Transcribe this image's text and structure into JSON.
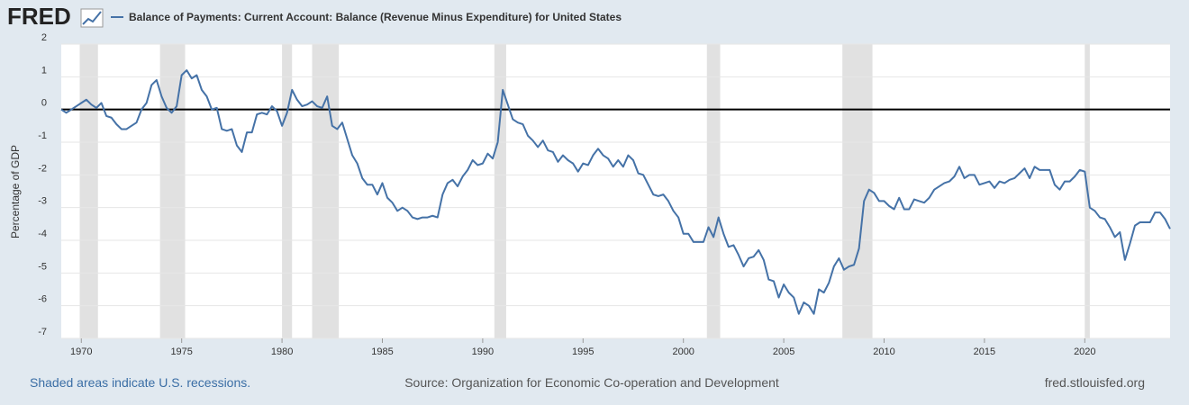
{
  "logo": "FRED",
  "chart_data": {
    "type": "line",
    "y_label": "Percentage of GDP",
    "note": "Shaded areas indicate U.S. recessions.",
    "source": "Source: Organization for Economic Co-operation and Development",
    "site": "fred.stlouisfed.org",
    "x": [
      1969,
      1969.25,
      1969.5,
      1969.75,
      1970,
      1970.25,
      1970.5,
      1970.75,
      1971,
      1971.25,
      1971.5,
      1971.75,
      1972,
      1972.25,
      1972.5,
      1972.75,
      1973,
      1973.25,
      1973.5,
      1973.75,
      1974,
      1974.25,
      1974.5,
      1974.75,
      1975,
      1975.25,
      1975.5,
      1975.75,
      1976,
      1976.25,
      1976.5,
      1976.75,
      1977,
      1977.25,
      1977.5,
      1977.75,
      1978,
      1978.25,
      1978.5,
      1978.75,
      1979,
      1979.25,
      1979.5,
      1979.75,
      1980,
      1980.25,
      1980.5,
      1980.75,
      1981,
      1981.25,
      1981.5,
      1981.75,
      1982,
      1982.25,
      1982.5,
      1982.75,
      1983,
      1983.25,
      1983.5,
      1983.75,
      1984,
      1984.25,
      1984.5,
      1984.75,
      1985,
      1985.25,
      1985.5,
      1985.75,
      1986,
      1986.25,
      1986.5,
      1986.75,
      1987,
      1987.25,
      1987.5,
      1987.75,
      1988,
      1988.25,
      1988.5,
      1988.75,
      1989,
      1989.25,
      1989.5,
      1989.75,
      1990,
      1990.25,
      1990.5,
      1990.75,
      1991,
      1991.25,
      1991.5,
      1991.75,
      1992,
      1992.25,
      1992.5,
      1992.75,
      1993,
      1993.25,
      1993.5,
      1993.75,
      1994,
      1994.25,
      1994.5,
      1994.75,
      1995,
      1995.25,
      1995.5,
      1995.75,
      1996,
      1996.25,
      1996.5,
      1996.75,
      1997,
      1997.25,
      1997.5,
      1997.75,
      1998,
      1998.25,
      1998.5,
      1998.75,
      1999,
      1999.25,
      1999.5,
      1999.75,
      2000,
      2000.25,
      2000.5,
      2000.75,
      2001,
      2001.25,
      2001.5,
      2001.75,
      2002,
      2002.25,
      2002.5,
      2002.75,
      2003,
      2003.25,
      2003.5,
      2003.75,
      2004,
      2004.25,
      2004.5,
      2004.75,
      2005,
      2005.25,
      2005.5,
      2005.75,
      2006,
      2006.25,
      2006.5,
      2006.75,
      2007,
      2007.25,
      2007.5,
      2007.75,
      2008,
      2008.25,
      2008.5,
      2008.75,
      2009,
      2009.25,
      2009.5,
      2009.75,
      2010,
      2010.25,
      2010.5,
      2010.75,
      2011,
      2011.25,
      2011.5,
      2011.75,
      2012,
      2012.25,
      2012.5,
      2012.75,
      2013,
      2013.25,
      2013.5,
      2013.75,
      2014,
      2014.25,
      2014.5,
      2014.75,
      2015,
      2015.25,
      2015.5,
      2015.75,
      2016,
      2016.25,
      2016.5,
      2016.75,
      2017,
      2017.25,
      2017.5,
      2017.75,
      2018,
      2018.25,
      2018.5,
      2018.75,
      2019,
      2019.25,
      2019.5,
      2019.75,
      2020,
      2020.25,
      2020.5,
      2020.75,
      2021,
      2021.25,
      2021.5,
      2021.75,
      2022,
      2022.25,
      2022.5,
      2022.75,
      2023,
      2023.25,
      2023.5,
      2023.75,
      2024,
      2024.25
    ],
    "series": [
      {
        "name": "Balance of Payments: Current Account: Balance (Revenue Minus Expenditure) for United States",
        "color": "#4572a7",
        "values": [
          0,
          -0.1,
          0,
          0.1,
          0.2,
          0.3,
          0.15,
          0.05,
          0.2,
          -0.2,
          -0.25,
          -0.45,
          -0.6,
          -0.6,
          -0.5,
          -0.4,
          0,
          0.2,
          0.75,
          0.9,
          0.4,
          0.05,
          -0.1,
          0.1,
          1.05,
          1.2,
          0.95,
          1.05,
          0.6,
          0.4,
          0,
          0.05,
          -0.6,
          -0.65,
          -0.6,
          -1.1,
          -1.3,
          -0.7,
          -0.7,
          -0.15,
          -0.1,
          -0.15,
          0.1,
          -0.05,
          -0.5,
          -0.1,
          0.6,
          0.3,
          0.1,
          0.15,
          0.25,
          0.1,
          0.05,
          0.4,
          -0.5,
          -0.6,
          -0.4,
          -0.9,
          -1.4,
          -1.65,
          -2.1,
          -2.3,
          -2.3,
          -2.6,
          -2.25,
          -2.7,
          -2.85,
          -3.1,
          -3,
          -3.1,
          -3.3,
          -3.35,
          -3.3,
          -3.3,
          -3.25,
          -3.3,
          -2.6,
          -2.25,
          -2.15,
          -2.35,
          -2.05,
          -1.85,
          -1.55,
          -1.7,
          -1.65,
          -1.35,
          -1.5,
          -1,
          0.6,
          0.15,
          -0.3,
          -0.4,
          -0.45,
          -0.8,
          -0.95,
          -1.15,
          -0.95,
          -1.25,
          -1.3,
          -1.6,
          -1.4,
          -1.55,
          -1.65,
          -1.9,
          -1.65,
          -1.7,
          -1.4,
          -1.2,
          -1.4,
          -1.5,
          -1.75,
          -1.55,
          -1.75,
          -1.4,
          -1.55,
          -1.95,
          -2,
          -2.3,
          -2.6,
          -2.65,
          -2.6,
          -2.8,
          -3.1,
          -3.3,
          -3.8,
          -3.8,
          -4.05,
          -4.05,
          -4.05,
          -3.6,
          -3.9,
          -3.3,
          -3.8,
          -4.2,
          -4.15,
          -4.45,
          -4.8,
          -4.55,
          -4.5,
          -4.3,
          -4.6,
          -5.2,
          -5.25,
          -5.75,
          -5.35,
          -5.6,
          -5.75,
          -6.25,
          -5.9,
          -6,
          -6.25,
          -5.5,
          -5.6,
          -5.3,
          -4.8,
          -4.55,
          -4.9,
          -4.8,
          -4.75,
          -4.25,
          -2.8,
          -2.45,
          -2.55,
          -2.8,
          -2.8,
          -2.95,
          -3.05,
          -2.7,
          -3.05,
          -3.05,
          -2.75,
          -2.8,
          -2.85,
          -2.7,
          -2.45,
          -2.35,
          -2.25,
          -2.2,
          -2.05,
          -1.75,
          -2.1,
          -2,
          -2,
          -2.3,
          -2.25,
          -2.2,
          -2.4,
          -2.2,
          -2.25,
          -2.15,
          -2.1,
          -1.95,
          -1.8,
          -2.1,
          -1.75,
          -1.85,
          -1.85,
          -1.85,
          -2.3,
          -2.45,
          -2.2,
          -2.2,
          -2.05,
          -1.85,
          -1.9,
          -3,
          -3.1,
          -3.3,
          -3.35,
          -3.6,
          -3.9,
          -3.75,
          -4.6,
          -4.1,
          -3.55,
          -3.45,
          -3.45,
          -3.45,
          -3.15,
          -3.15,
          -3.35,
          -3.65
        ]
      }
    ],
    "recessions": [
      [
        1969.92,
        1970.83
      ],
      [
        1973.92,
        1975.17
      ],
      [
        1980,
        1980.5
      ],
      [
        1981.5,
        1982.83
      ],
      [
        1990.58,
        1991.17
      ],
      [
        2001.17,
        2001.83
      ],
      [
        2007.92,
        2009.42
      ],
      [
        2020,
        2020.25
      ]
    ],
    "recession_color": "#e1e1e1",
    "xlim": [
      1969,
      2024.25
    ],
    "xticks": [
      1970,
      1975,
      1980,
      1985,
      1990,
      1995,
      2000,
      2005,
      2010,
      2015,
      2020
    ],
    "ylim": [
      -7,
      2
    ],
    "yticks": [
      2,
      1,
      0,
      -1,
      -2,
      -3,
      -4,
      -5,
      -6,
      -7
    ],
    "grid": true,
    "zero_line": true
  }
}
